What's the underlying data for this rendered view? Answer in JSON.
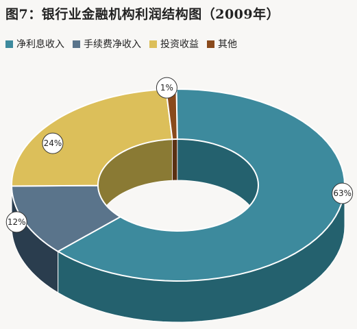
{
  "title": "图7：银行业金融机构利润结构图（2009年）",
  "chart_data": {
    "type": "pie",
    "subtype": "3d-donut",
    "title": "图7：银行业金融机构利润结构图（2009年）",
    "legend_position": "top-left",
    "categories": [
      "净利息收入",
      "手续费净收入",
      "投资收益",
      "其他"
    ],
    "values": [
      63,
      12,
      24,
      1
    ],
    "data_labels": [
      "63%",
      "12%",
      "24%",
      "1%"
    ],
    "colors": [
      "#3d8a9d",
      "#5a748b",
      "#dcbf5a",
      "#8a4a1c"
    ],
    "side_colors": [
      "#24616e",
      "#2a3d4e",
      "#8a7a34",
      "#5a3012"
    ]
  }
}
